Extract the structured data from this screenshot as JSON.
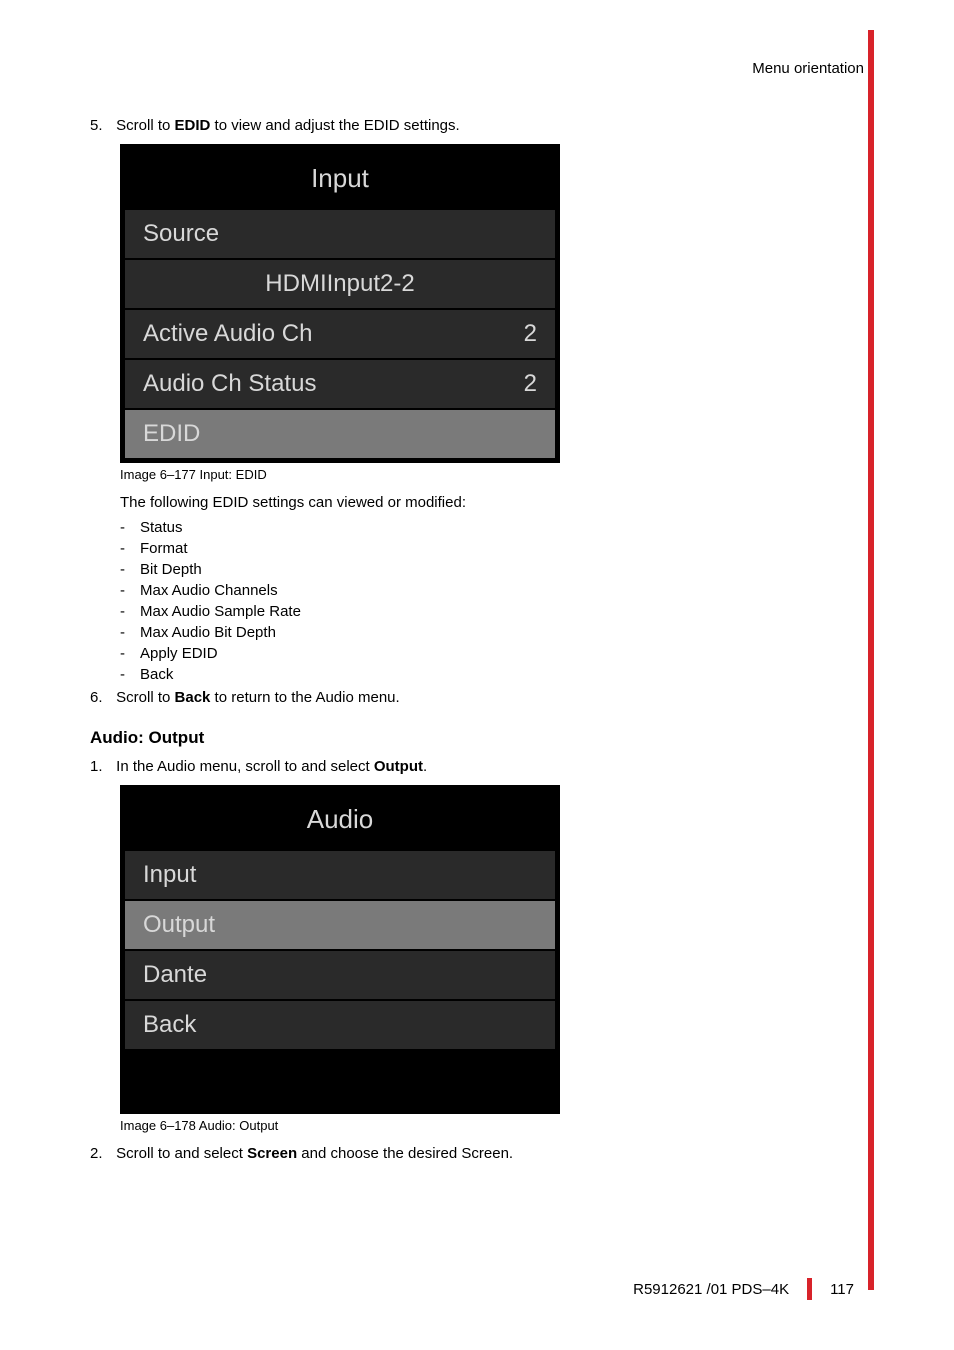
{
  "header": {
    "right": "Menu orientation"
  },
  "steps": {
    "s5_pre": "Scroll to ",
    "s5_bold": "EDID",
    "s5_post": " to view and adjust the EDID settings.",
    "s6_pre": "Scroll to ",
    "s6_bold": "Back",
    "s6_post": " to return to the Audio menu.",
    "o1_pre": "In the Audio menu, scroll to and select ",
    "o1_bold": "Output",
    "o1_post": ".",
    "o2_pre": "Scroll to and select ",
    "o2_bold": "Screen",
    "o2_post": " and choose the desired Screen."
  },
  "menu1": {
    "title": "Input",
    "rows": [
      {
        "label": "Source",
        "value": "",
        "variant": "dark"
      },
      {
        "label": "HDMIInput2-2",
        "value": "",
        "variant": "dark center"
      },
      {
        "label": "Active Audio Ch",
        "value": "2",
        "variant": "dark"
      },
      {
        "label": "Audio Ch Status",
        "value": "2",
        "variant": "dark"
      },
      {
        "label": "EDID",
        "value": "",
        "variant": "highlight"
      }
    ],
    "caption": "Image 6–177  Input: EDID"
  },
  "intro_line": "The following EDID settings can viewed or modified:",
  "edid_items": [
    "Status",
    "Format",
    "Bit Depth",
    "Max Audio Channels",
    "Max Audio Sample Rate",
    "Max Audio Bit Depth",
    "Apply EDID",
    "Back"
  ],
  "section_heading": "Audio: Output",
  "menu2": {
    "title": "Audio",
    "rows": [
      {
        "label": "Input",
        "value": "",
        "variant": "dark"
      },
      {
        "label": "Output",
        "value": "",
        "variant": "highlight"
      },
      {
        "label": "Dante",
        "value": "",
        "variant": "dark"
      },
      {
        "label": "Back",
        "value": "",
        "variant": "dark"
      },
      {
        "label": "",
        "value": "",
        "variant": "black empty"
      }
    ],
    "caption": "Image 6–178  Audio: Output"
  },
  "footer": {
    "doc": "R5912621 /01 PDS–4K",
    "page": "117"
  }
}
